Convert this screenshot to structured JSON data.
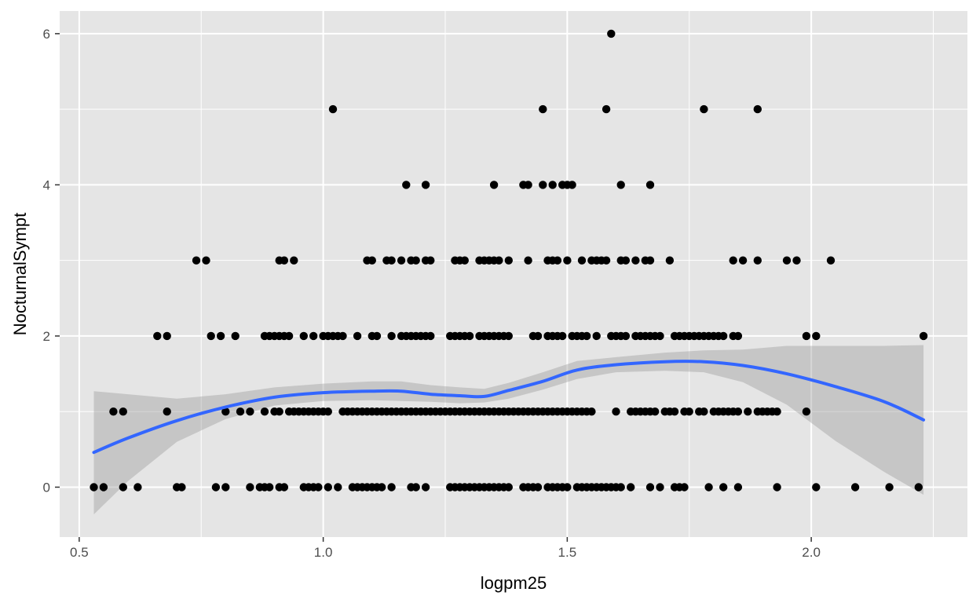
{
  "chart_data": {
    "type": "scatter",
    "title": "",
    "xlabel": "logpm25",
    "ylabel": "NocturnalSympt",
    "xlim": [
      0.46,
      2.32
    ],
    "ylim": [
      -0.66,
      6.3
    ],
    "x_ticks": [
      0.5,
      1.0,
      1.5,
      2.0
    ],
    "x_tick_labels": [
      "0.5",
      "1.0",
      "1.5",
      "2.0"
    ],
    "y_ticks": [
      0,
      2,
      4,
      6
    ],
    "y_tick_labels": [
      "0",
      "2",
      "4",
      "6"
    ],
    "grid": true,
    "colors": {
      "panel": "#e5e5e5",
      "grid": "#ffffff",
      "points": "#000000",
      "smooth_line": "#3366ff",
      "confidence_band": "#999999"
    },
    "points": [
      {
        "x": 1.59,
        "y": 6
      },
      {
        "x": 1.02,
        "y": 5
      },
      {
        "x": 1.45,
        "y": 5
      },
      {
        "x": 1.58,
        "y": 5
      },
      {
        "x": 1.78,
        "y": 5
      },
      {
        "x": 1.89,
        "y": 5
      },
      {
        "x": 1.17,
        "y": 4
      },
      {
        "x": 1.21,
        "y": 4
      },
      {
        "x": 1.35,
        "y": 4
      },
      {
        "x": 1.41,
        "y": 4
      },
      {
        "x": 1.42,
        "y": 4
      },
      {
        "x": 1.45,
        "y": 4
      },
      {
        "x": 1.47,
        "y": 4
      },
      {
        "x": 1.49,
        "y": 4
      },
      {
        "x": 1.5,
        "y": 4
      },
      {
        "x": 1.51,
        "y": 4
      },
      {
        "x": 1.61,
        "y": 4
      },
      {
        "x": 1.67,
        "y": 4
      },
      {
        "x": 0.74,
        "y": 3
      },
      {
        "x": 0.76,
        "y": 3
      },
      {
        "x": 0.91,
        "y": 3
      },
      {
        "x": 0.92,
        "y": 3
      },
      {
        "x": 0.94,
        "y": 3
      },
      {
        "x": 1.09,
        "y": 3
      },
      {
        "x": 1.1,
        "y": 3
      },
      {
        "x": 1.13,
        "y": 3
      },
      {
        "x": 1.14,
        "y": 3
      },
      {
        "x": 1.16,
        "y": 3
      },
      {
        "x": 1.18,
        "y": 3
      },
      {
        "x": 1.19,
        "y": 3
      },
      {
        "x": 1.21,
        "y": 3
      },
      {
        "x": 1.22,
        "y": 3
      },
      {
        "x": 1.27,
        "y": 3
      },
      {
        "x": 1.28,
        "y": 3
      },
      {
        "x": 1.29,
        "y": 3
      },
      {
        "x": 1.32,
        "y": 3
      },
      {
        "x": 1.33,
        "y": 3
      },
      {
        "x": 1.34,
        "y": 3
      },
      {
        "x": 1.35,
        "y": 3
      },
      {
        "x": 1.36,
        "y": 3
      },
      {
        "x": 1.38,
        "y": 3
      },
      {
        "x": 1.42,
        "y": 3
      },
      {
        "x": 1.46,
        "y": 3
      },
      {
        "x": 1.47,
        "y": 3
      },
      {
        "x": 1.48,
        "y": 3
      },
      {
        "x": 1.5,
        "y": 3
      },
      {
        "x": 1.53,
        "y": 3
      },
      {
        "x": 1.55,
        "y": 3
      },
      {
        "x": 1.56,
        "y": 3
      },
      {
        "x": 1.57,
        "y": 3
      },
      {
        "x": 1.58,
        "y": 3
      },
      {
        "x": 1.61,
        "y": 3
      },
      {
        "x": 1.62,
        "y": 3
      },
      {
        "x": 1.64,
        "y": 3
      },
      {
        "x": 1.66,
        "y": 3
      },
      {
        "x": 1.67,
        "y": 3
      },
      {
        "x": 1.71,
        "y": 3
      },
      {
        "x": 1.84,
        "y": 3
      },
      {
        "x": 1.86,
        "y": 3
      },
      {
        "x": 1.89,
        "y": 3
      },
      {
        "x": 1.95,
        "y": 3
      },
      {
        "x": 1.97,
        "y": 3
      },
      {
        "x": 2.04,
        "y": 3
      },
      {
        "x": 0.66,
        "y": 2
      },
      {
        "x": 0.68,
        "y": 2
      },
      {
        "x": 0.77,
        "y": 2
      },
      {
        "x": 0.79,
        "y": 2
      },
      {
        "x": 0.82,
        "y": 2
      },
      {
        "x": 0.88,
        "y": 2
      },
      {
        "x": 0.89,
        "y": 2
      },
      {
        "x": 0.9,
        "y": 2
      },
      {
        "x": 0.91,
        "y": 2
      },
      {
        "x": 0.92,
        "y": 2
      },
      {
        "x": 0.93,
        "y": 2
      },
      {
        "x": 0.96,
        "y": 2
      },
      {
        "x": 0.98,
        "y": 2
      },
      {
        "x": 1.0,
        "y": 2
      },
      {
        "x": 1.01,
        "y": 2
      },
      {
        "x": 1.02,
        "y": 2
      },
      {
        "x": 1.03,
        "y": 2
      },
      {
        "x": 1.04,
        "y": 2
      },
      {
        "x": 1.07,
        "y": 2
      },
      {
        "x": 1.1,
        "y": 2
      },
      {
        "x": 1.11,
        "y": 2
      },
      {
        "x": 1.14,
        "y": 2
      },
      {
        "x": 1.16,
        "y": 2
      },
      {
        "x": 1.17,
        "y": 2
      },
      {
        "x": 1.18,
        "y": 2
      },
      {
        "x": 1.19,
        "y": 2
      },
      {
        "x": 1.2,
        "y": 2
      },
      {
        "x": 1.21,
        "y": 2
      },
      {
        "x": 1.22,
        "y": 2
      },
      {
        "x": 1.26,
        "y": 2
      },
      {
        "x": 1.27,
        "y": 2
      },
      {
        "x": 1.28,
        "y": 2
      },
      {
        "x": 1.29,
        "y": 2
      },
      {
        "x": 1.3,
        "y": 2
      },
      {
        "x": 1.32,
        "y": 2
      },
      {
        "x": 1.33,
        "y": 2
      },
      {
        "x": 1.34,
        "y": 2
      },
      {
        "x": 1.35,
        "y": 2
      },
      {
        "x": 1.36,
        "y": 2
      },
      {
        "x": 1.37,
        "y": 2
      },
      {
        "x": 1.38,
        "y": 2
      },
      {
        "x": 1.43,
        "y": 2
      },
      {
        "x": 1.44,
        "y": 2
      },
      {
        "x": 1.46,
        "y": 2
      },
      {
        "x": 1.47,
        "y": 2
      },
      {
        "x": 1.48,
        "y": 2
      },
      {
        "x": 1.49,
        "y": 2
      },
      {
        "x": 1.51,
        "y": 2
      },
      {
        "x": 1.52,
        "y": 2
      },
      {
        "x": 1.53,
        "y": 2
      },
      {
        "x": 1.54,
        "y": 2
      },
      {
        "x": 1.56,
        "y": 2
      },
      {
        "x": 1.59,
        "y": 2
      },
      {
        "x": 1.6,
        "y": 2
      },
      {
        "x": 1.61,
        "y": 2
      },
      {
        "x": 1.62,
        "y": 2
      },
      {
        "x": 1.64,
        "y": 2
      },
      {
        "x": 1.65,
        "y": 2
      },
      {
        "x": 1.66,
        "y": 2
      },
      {
        "x": 1.67,
        "y": 2
      },
      {
        "x": 1.68,
        "y": 2
      },
      {
        "x": 1.69,
        "y": 2
      },
      {
        "x": 1.72,
        "y": 2
      },
      {
        "x": 1.73,
        "y": 2
      },
      {
        "x": 1.74,
        "y": 2
      },
      {
        "x": 1.75,
        "y": 2
      },
      {
        "x": 1.76,
        "y": 2
      },
      {
        "x": 1.77,
        "y": 2
      },
      {
        "x": 1.78,
        "y": 2
      },
      {
        "x": 1.79,
        "y": 2
      },
      {
        "x": 1.8,
        "y": 2
      },
      {
        "x": 1.81,
        "y": 2
      },
      {
        "x": 1.82,
        "y": 2
      },
      {
        "x": 1.84,
        "y": 2
      },
      {
        "x": 1.85,
        "y": 2
      },
      {
        "x": 1.99,
        "y": 2
      },
      {
        "x": 2.01,
        "y": 2
      },
      {
        "x": 2.23,
        "y": 2
      },
      {
        "x": 0.57,
        "y": 1
      },
      {
        "x": 0.59,
        "y": 1
      },
      {
        "x": 0.68,
        "y": 1
      },
      {
        "x": 0.8,
        "y": 1
      },
      {
        "x": 0.83,
        "y": 1
      },
      {
        "x": 0.85,
        "y": 1
      },
      {
        "x": 0.88,
        "y": 1
      },
      {
        "x": 0.9,
        "y": 1
      },
      {
        "x": 0.91,
        "y": 1
      },
      {
        "x": 0.93,
        "y": 1
      },
      {
        "x": 0.94,
        "y": 1
      },
      {
        "x": 0.95,
        "y": 1
      },
      {
        "x": 0.96,
        "y": 1
      },
      {
        "x": 0.97,
        "y": 1
      },
      {
        "x": 0.98,
        "y": 1
      },
      {
        "x": 0.99,
        "y": 1
      },
      {
        "x": 1.0,
        "y": 1
      },
      {
        "x": 1.01,
        "y": 1
      },
      {
        "x": 1.04,
        "y": 1
      },
      {
        "x": 1.05,
        "y": 1
      },
      {
        "x": 1.06,
        "y": 1
      },
      {
        "x": 1.07,
        "y": 1
      },
      {
        "x": 1.08,
        "y": 1
      },
      {
        "x": 1.09,
        "y": 1
      },
      {
        "x": 1.1,
        "y": 1
      },
      {
        "x": 1.11,
        "y": 1
      },
      {
        "x": 1.12,
        "y": 1
      },
      {
        "x": 1.13,
        "y": 1
      },
      {
        "x": 1.14,
        "y": 1
      },
      {
        "x": 1.15,
        "y": 1
      },
      {
        "x": 1.16,
        "y": 1
      },
      {
        "x": 1.17,
        "y": 1
      },
      {
        "x": 1.18,
        "y": 1
      },
      {
        "x": 1.19,
        "y": 1
      },
      {
        "x": 1.2,
        "y": 1
      },
      {
        "x": 1.21,
        "y": 1
      },
      {
        "x": 1.22,
        "y": 1
      },
      {
        "x": 1.23,
        "y": 1
      },
      {
        "x": 1.24,
        "y": 1
      },
      {
        "x": 1.25,
        "y": 1
      },
      {
        "x": 1.26,
        "y": 1
      },
      {
        "x": 1.27,
        "y": 1
      },
      {
        "x": 1.28,
        "y": 1
      },
      {
        "x": 1.29,
        "y": 1
      },
      {
        "x": 1.3,
        "y": 1
      },
      {
        "x": 1.31,
        "y": 1
      },
      {
        "x": 1.32,
        "y": 1
      },
      {
        "x": 1.33,
        "y": 1
      },
      {
        "x": 1.34,
        "y": 1
      },
      {
        "x": 1.35,
        "y": 1
      },
      {
        "x": 1.36,
        "y": 1
      },
      {
        "x": 1.37,
        "y": 1
      },
      {
        "x": 1.38,
        "y": 1
      },
      {
        "x": 1.39,
        "y": 1
      },
      {
        "x": 1.4,
        "y": 1
      },
      {
        "x": 1.41,
        "y": 1
      },
      {
        "x": 1.42,
        "y": 1
      },
      {
        "x": 1.43,
        "y": 1
      },
      {
        "x": 1.44,
        "y": 1
      },
      {
        "x": 1.45,
        "y": 1
      },
      {
        "x": 1.46,
        "y": 1
      },
      {
        "x": 1.47,
        "y": 1
      },
      {
        "x": 1.48,
        "y": 1
      },
      {
        "x": 1.49,
        "y": 1
      },
      {
        "x": 1.5,
        "y": 1
      },
      {
        "x": 1.51,
        "y": 1
      },
      {
        "x": 1.52,
        "y": 1
      },
      {
        "x": 1.53,
        "y": 1
      },
      {
        "x": 1.54,
        "y": 1
      },
      {
        "x": 1.55,
        "y": 1
      },
      {
        "x": 1.6,
        "y": 1
      },
      {
        "x": 1.63,
        "y": 1
      },
      {
        "x": 1.64,
        "y": 1
      },
      {
        "x": 1.65,
        "y": 1
      },
      {
        "x": 1.66,
        "y": 1
      },
      {
        "x": 1.67,
        "y": 1
      },
      {
        "x": 1.68,
        "y": 1
      },
      {
        "x": 1.7,
        "y": 1
      },
      {
        "x": 1.71,
        "y": 1
      },
      {
        "x": 1.72,
        "y": 1
      },
      {
        "x": 1.74,
        "y": 1
      },
      {
        "x": 1.75,
        "y": 1
      },
      {
        "x": 1.77,
        "y": 1
      },
      {
        "x": 1.78,
        "y": 1
      },
      {
        "x": 1.8,
        "y": 1
      },
      {
        "x": 1.81,
        "y": 1
      },
      {
        "x": 1.82,
        "y": 1
      },
      {
        "x": 1.83,
        "y": 1
      },
      {
        "x": 1.84,
        "y": 1
      },
      {
        "x": 1.85,
        "y": 1
      },
      {
        "x": 1.87,
        "y": 1
      },
      {
        "x": 1.89,
        "y": 1
      },
      {
        "x": 1.9,
        "y": 1
      },
      {
        "x": 1.91,
        "y": 1
      },
      {
        "x": 1.92,
        "y": 1
      },
      {
        "x": 1.93,
        "y": 1
      },
      {
        "x": 1.99,
        "y": 1
      },
      {
        "x": 0.53,
        "y": 0
      },
      {
        "x": 0.55,
        "y": 0
      },
      {
        "x": 0.59,
        "y": 0
      },
      {
        "x": 0.62,
        "y": 0
      },
      {
        "x": 0.7,
        "y": 0
      },
      {
        "x": 0.71,
        "y": 0
      },
      {
        "x": 0.78,
        "y": 0
      },
      {
        "x": 0.8,
        "y": 0
      },
      {
        "x": 0.85,
        "y": 0
      },
      {
        "x": 0.87,
        "y": 0
      },
      {
        "x": 0.88,
        "y": 0
      },
      {
        "x": 0.89,
        "y": 0
      },
      {
        "x": 0.91,
        "y": 0
      },
      {
        "x": 0.92,
        "y": 0
      },
      {
        "x": 0.96,
        "y": 0
      },
      {
        "x": 0.97,
        "y": 0
      },
      {
        "x": 0.98,
        "y": 0
      },
      {
        "x": 0.99,
        "y": 0
      },
      {
        "x": 1.01,
        "y": 0
      },
      {
        "x": 1.03,
        "y": 0
      },
      {
        "x": 1.06,
        "y": 0
      },
      {
        "x": 1.07,
        "y": 0
      },
      {
        "x": 1.08,
        "y": 0
      },
      {
        "x": 1.09,
        "y": 0
      },
      {
        "x": 1.1,
        "y": 0
      },
      {
        "x": 1.11,
        "y": 0
      },
      {
        "x": 1.12,
        "y": 0
      },
      {
        "x": 1.14,
        "y": 0
      },
      {
        "x": 1.18,
        "y": 0
      },
      {
        "x": 1.19,
        "y": 0
      },
      {
        "x": 1.21,
        "y": 0
      },
      {
        "x": 1.26,
        "y": 0
      },
      {
        "x": 1.27,
        "y": 0
      },
      {
        "x": 1.28,
        "y": 0
      },
      {
        "x": 1.29,
        "y": 0
      },
      {
        "x": 1.3,
        "y": 0
      },
      {
        "x": 1.31,
        "y": 0
      },
      {
        "x": 1.32,
        "y": 0
      },
      {
        "x": 1.33,
        "y": 0
      },
      {
        "x": 1.34,
        "y": 0
      },
      {
        "x": 1.35,
        "y": 0
      },
      {
        "x": 1.36,
        "y": 0
      },
      {
        "x": 1.37,
        "y": 0
      },
      {
        "x": 1.38,
        "y": 0
      },
      {
        "x": 1.41,
        "y": 0
      },
      {
        "x": 1.42,
        "y": 0
      },
      {
        "x": 1.43,
        "y": 0
      },
      {
        "x": 1.44,
        "y": 0
      },
      {
        "x": 1.46,
        "y": 0
      },
      {
        "x": 1.47,
        "y": 0
      },
      {
        "x": 1.48,
        "y": 0
      },
      {
        "x": 1.49,
        "y": 0
      },
      {
        "x": 1.5,
        "y": 0
      },
      {
        "x": 1.52,
        "y": 0
      },
      {
        "x": 1.53,
        "y": 0
      },
      {
        "x": 1.54,
        "y": 0
      },
      {
        "x": 1.55,
        "y": 0
      },
      {
        "x": 1.56,
        "y": 0
      },
      {
        "x": 1.57,
        "y": 0
      },
      {
        "x": 1.58,
        "y": 0
      },
      {
        "x": 1.59,
        "y": 0
      },
      {
        "x": 1.6,
        "y": 0
      },
      {
        "x": 1.61,
        "y": 0
      },
      {
        "x": 1.63,
        "y": 0
      },
      {
        "x": 1.67,
        "y": 0
      },
      {
        "x": 1.69,
        "y": 0
      },
      {
        "x": 1.72,
        "y": 0
      },
      {
        "x": 1.73,
        "y": 0
      },
      {
        "x": 1.74,
        "y": 0
      },
      {
        "x": 1.79,
        "y": 0
      },
      {
        "x": 1.82,
        "y": 0
      },
      {
        "x": 1.85,
        "y": 0
      },
      {
        "x": 1.93,
        "y": 0
      },
      {
        "x": 2.01,
        "y": 0
      },
      {
        "x": 2.09,
        "y": 0
      },
      {
        "x": 2.16,
        "y": 0
      },
      {
        "x": 2.22,
        "y": 0
      }
    ],
    "smooth": {
      "method": "loess",
      "x": [
        0.53,
        0.6,
        0.7,
        0.8,
        0.9,
        1.0,
        1.1,
        1.16,
        1.22,
        1.28,
        1.33,
        1.38,
        1.45,
        1.52,
        1.6,
        1.7,
        1.78,
        1.86,
        1.95,
        2.05,
        2.15,
        2.23
      ],
      "y": [
        0.46,
        0.65,
        0.88,
        1.06,
        1.19,
        1.25,
        1.27,
        1.27,
        1.23,
        1.21,
        1.2,
        1.28,
        1.4,
        1.55,
        1.62,
        1.66,
        1.66,
        1.61,
        1.5,
        1.33,
        1.13,
        0.89
      ],
      "lower": [
        -0.36,
        0.08,
        0.6,
        0.9,
        1.08,
        1.14,
        1.15,
        1.14,
        1.13,
        1.11,
        1.12,
        1.17,
        1.29,
        1.43,
        1.52,
        1.54,
        1.52,
        1.39,
        1.09,
        0.61,
        0.2,
        -0.1
      ],
      "upper": [
        1.27,
        1.23,
        1.17,
        1.23,
        1.32,
        1.37,
        1.4,
        1.4,
        1.35,
        1.32,
        1.3,
        1.38,
        1.52,
        1.67,
        1.72,
        1.78,
        1.81,
        1.82,
        1.87,
        1.87,
        1.87,
        1.88
      ]
    }
  }
}
